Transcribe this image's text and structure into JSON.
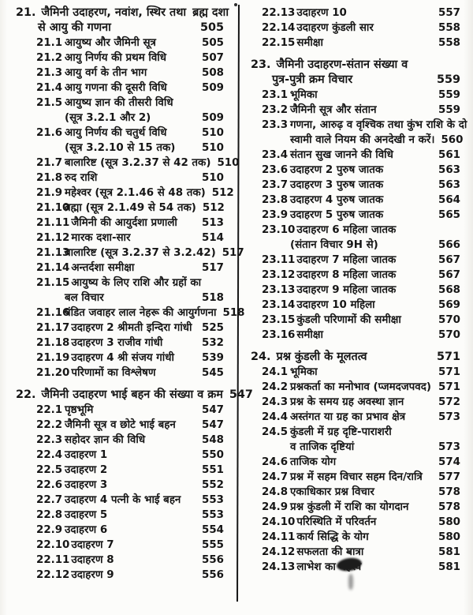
{
  "colors": {
    "ink": "#161616",
    "paper": "#fcfcfa"
  },
  "columns": [
    {
      "rows": [
        {
          "k": "ch",
          "n": "21.",
          "t": "जैमिनी उदाहरण, नवांश, स्थिर तथा",
          "r": "ब्रह्म दशा"
        },
        {
          "k": "chc",
          "t": "से आयु की गणना",
          "r": "505"
        },
        {
          "k": "e",
          "n": "21.1",
          "t": "आयुष्य और जैमिनी सूत्र",
          "r": "505"
        },
        {
          "k": "e",
          "n": "21.2",
          "t": "आयु निर्णय की प्रथम विधि",
          "r": "507"
        },
        {
          "k": "e",
          "n": "21.3",
          "t": "आयु वर्ग के तीन भाग",
          "r": "508"
        },
        {
          "k": "e",
          "n": "21.4",
          "t": "आयु गणना की दूसरी विधि",
          "r": "509"
        },
        {
          "k": "e",
          "n": "21.5",
          "t": "आयुष्य ज्ञान की तीसरी विधि",
          "r": ""
        },
        {
          "k": "c",
          "t": "(सूत्र 3.2.1 और 2)",
          "r": "509"
        },
        {
          "k": "e",
          "n": "21.6",
          "t": "आयु निर्णय की चतुर्थ विधि",
          "r": "510"
        },
        {
          "k": "c",
          "t": "(सूत्र 3.2.10 से 15 तक)",
          "r": "510"
        },
        {
          "k": "e",
          "n": "21.7",
          "t": "बालारिष्ट (सूत्र 3.2.37 से 42 तक)",
          "r": "510"
        },
        {
          "k": "e",
          "n": "21.8",
          "t": "रुद राशि",
          "r": "510"
        },
        {
          "k": "e",
          "n": "21.9",
          "t": "महेश्वर (सूत्र 2.1.46 से 48 तक)",
          "r": "512"
        },
        {
          "k": "e",
          "n": "21.10",
          "t": "ब्रह्मा (सूत्र 2.1.49 से 54 तक)",
          "r": "512"
        },
        {
          "k": "e",
          "n": "21.11",
          "t": "जैमिनी की आयुर्दशा प्रणाली",
          "r": "513"
        },
        {
          "k": "e",
          "n": "21.12",
          "t": "मारक दशा-सार",
          "r": "514"
        },
        {
          "k": "e",
          "n": "21.13",
          "t": "बालारिष्ट (सूत्र 3.2.37 से 3.2.42)",
          "r": "517"
        },
        {
          "k": "e",
          "n": "21.14",
          "t": "अन्तर्दशा समीक्षा",
          "r": "517"
        },
        {
          "k": "e",
          "n": "21.15",
          "t": "आयुष्य के लिए राशि और ग्रहों का",
          "r": ""
        },
        {
          "k": "c",
          "t": "बल विचार",
          "r": "518"
        },
        {
          "k": "e",
          "n": "21.16",
          "t": "पंडित जवाहर लाल नेहरू की आयुर्गणना",
          "r": "518"
        },
        {
          "k": "e",
          "n": "21.17",
          "t": "उदाहरण 2 श्रीमती इन्दिरा गांधी",
          "r": "525"
        },
        {
          "k": "e",
          "n": "21.18",
          "t": "उदाहरण 3 राजीव गांधी",
          "r": "532"
        },
        {
          "k": "e",
          "n": "21.19",
          "t": "उदाहरण 4 श्री संजय गांधी",
          "r": "539"
        },
        {
          "k": "e",
          "n": "21.20",
          "t": "परिणामों का विश्लेषण",
          "r": "545"
        },
        {
          "k": "ch",
          "n": "22.",
          "t": "जैमिनी उदाहरण भाई बहन की संख्या व क्रम",
          "r": "547"
        },
        {
          "k": "e",
          "n": "22.1",
          "t": "पृष्ठभूमि",
          "r": "547"
        },
        {
          "k": "e",
          "n": "22.2",
          "t": "जैमिनी सूत्र व छोटे भाई बहन",
          "r": "547"
        },
        {
          "k": "e",
          "n": "22.3",
          "t": "सहोदर ज्ञान की विधि",
          "r": "548"
        },
        {
          "k": "e",
          "n": "22.4",
          "t": "उदाहरण 1",
          "r": "550"
        },
        {
          "k": "e",
          "n": "22.5",
          "t": "उदाहरण 2",
          "r": "551"
        },
        {
          "k": "e",
          "n": "22.6",
          "t": "उदाहरण 3",
          "r": "552"
        },
        {
          "k": "e",
          "n": "22.7",
          "t": "उदाहरण 4 पत्नी के भाई बहन",
          "r": "553"
        },
        {
          "k": "e",
          "n": "22.8",
          "t": "उदाहरण 5",
          "r": "553"
        },
        {
          "k": "e",
          "n": "22.9",
          "t": "उदाहरण 6",
          "r": "554"
        },
        {
          "k": "e",
          "n": "22.10",
          "t": "उदाहरण 7",
          "r": "555"
        },
        {
          "k": "e",
          "n": "22.11",
          "t": "उदाहरण 8",
          "r": "556"
        },
        {
          "k": "e",
          "n": "22.12",
          "t": "उदाहरण 9",
          "r": "556"
        }
      ]
    },
    {
      "rows": [
        {
          "k": "e",
          "n": "22.13",
          "t": "उदाहरण 10",
          "r": "557"
        },
        {
          "k": "e",
          "n": "22.14",
          "t": "उदाहरण कुंडली सार",
          "r": "558"
        },
        {
          "k": "e",
          "n": "22.15",
          "t": "समीक्षा",
          "r": "558"
        },
        {
          "k": "ch",
          "n": "23.",
          "t": "जैमिनी उदाहरण-संतान संख्या व",
          "r": ""
        },
        {
          "k": "chc",
          "t": "पुत्र-पुत्री क्रम विचार",
          "r": "559"
        },
        {
          "k": "e",
          "n": "23.1",
          "t": "भूमिका",
          "r": "559"
        },
        {
          "k": "e",
          "n": "23.2",
          "t": "जैमिनी सूत्र और संतान",
          "r": "559"
        },
        {
          "k": "e",
          "n": "23.3",
          "t": "गणना, आरुढ़ व वृश्चिक तथा कुंभ राशि के दो",
          "r": ""
        },
        {
          "k": "c",
          "t": "स्वामी वाले नियम की अनदेखी न करें।",
          "r": "560"
        },
        {
          "k": "e",
          "n": "23.4",
          "t": "संतान सुख जानने की विधि",
          "r": "561"
        },
        {
          "k": "e",
          "n": "23.6",
          "t": "उदाहरण 2 पुरुष जातक",
          "r": "563"
        },
        {
          "k": "e",
          "n": "23.7",
          "t": "उदाहरण 3 पुरुष जातक",
          "r": "563"
        },
        {
          "k": "e",
          "n": "23.8",
          "t": "उदाहरण 4 पुरुष जातक",
          "r": "564"
        },
        {
          "k": "e",
          "n": "23.9",
          "t": "उदाहरण 5 पुरुष जातक",
          "r": "565"
        },
        {
          "k": "e",
          "n": "23.10",
          "t": "उदाहरण 6 महिला जातक",
          "r": ""
        },
        {
          "k": "c",
          "t": "(संतान विचार 9H से)",
          "r": "566"
        },
        {
          "k": "e",
          "n": "23.11",
          "t": "उदाहरण 7 महिला जातक",
          "r": "567"
        },
        {
          "k": "e",
          "n": "23.12",
          "t": "उदाहरण 8 महिला जातक",
          "r": "567"
        },
        {
          "k": "e",
          "n": "23.13",
          "t": "उदाहरण 9 महिला जातक",
          "r": "568"
        },
        {
          "k": "e",
          "n": "23.14",
          "t": "उदाहरण 10 महिला",
          "r": "569"
        },
        {
          "k": "e",
          "n": "23.15",
          "t": "कुंडली परिणामों की समीक्षा",
          "r": "570"
        },
        {
          "k": "e",
          "n": "23.16",
          "t": "समीक्षा",
          "r": "570"
        },
        {
          "k": "ch",
          "n": "24.",
          "t": "प्रश्न कुंडली के मूलतत्व",
          "r": "571"
        },
        {
          "k": "e",
          "n": "24.1",
          "t": "भूमिका",
          "r": "571"
        },
        {
          "k": "e",
          "n": "24.2",
          "t": "प्रश्नकर्ता का मनोभाव (प्जमदजपवद)",
          "r": "571"
        },
        {
          "k": "e",
          "n": "24.3",
          "t": "प्रश्न के समय ग्रह अवस्था ज्ञान",
          "r": "572"
        },
        {
          "k": "e",
          "n": "24.4",
          "t": "अस्तंगत या ग्रह का प्रभाव क्षेत्र",
          "r": "573"
        },
        {
          "k": "e",
          "n": "24.5",
          "t": "कुंडली में ग्रह दृष्टि-पाराशरी",
          "r": ""
        },
        {
          "k": "c",
          "t": "व ताजिक दृष्टियां",
          "r": "573"
        },
        {
          "k": "e",
          "n": "24.6",
          "t": "ताजिक योग",
          "r": "574"
        },
        {
          "k": "e",
          "n": "24.7",
          "t": "प्रश्न में सहम विचार सहम दिन/रात्रि",
          "r": "577"
        },
        {
          "k": "e",
          "n": "24.8",
          "t": "एकाधिकार प्रश्न विचार",
          "r": "578"
        },
        {
          "k": "e",
          "n": "24.9",
          "t": "प्रश्न कुंडली में राशि का योगदान",
          "r": "578"
        },
        {
          "k": "e",
          "n": "24.10",
          "t": "परिस्थिति में परिवर्तन",
          "r": "580"
        },
        {
          "k": "e",
          "n": "24.11",
          "t": "कार्य सिद्धि के योग",
          "r": "580"
        },
        {
          "k": "e",
          "n": "24.12",
          "t": "सफलता की मात्रा",
          "r": "581"
        },
        {
          "k": "e",
          "n": "24.13",
          "t": "लाभेश का महत्त्व",
          "r": "581"
        }
      ]
    }
  ]
}
